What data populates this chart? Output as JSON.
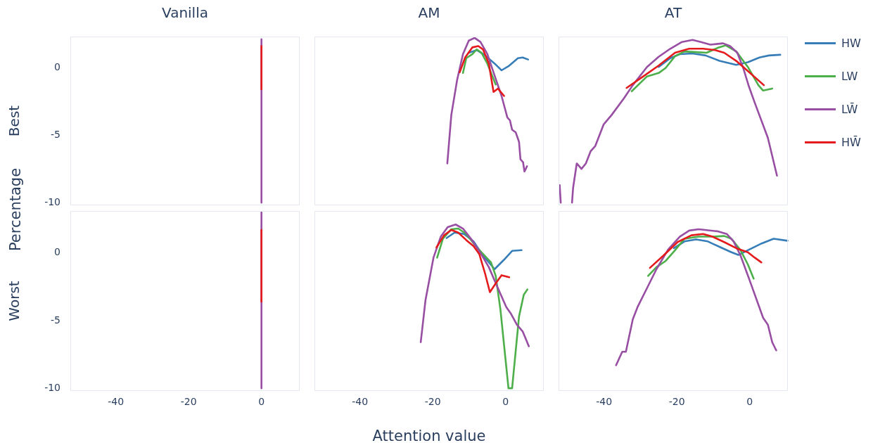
{
  "chart_data": [
    {
      "type": "line",
      "title": "Vanilla",
      "ylabel": "Best",
      "annotations": [
        "Percentage"
      ],
      "xlim": [
        -52.5,
        10.5
      ],
      "ylim": [
        -10.2,
        2.3
      ],
      "xticks": [
        -40,
        -20,
        0
      ],
      "yticks": [
        -10,
        -5,
        0
      ],
      "tick_labels": "y",
      "marker": "none",
      "legend": false,
      "series": [
        {
          "color": "#984ea3",
          "x": [
            0,
            0
          ],
          "values": [
            2.1,
            -10
          ]
        },
        {
          "color": "#e41a1c",
          "x": [
            0,
            0
          ],
          "values": [
            1.6,
            -1.6
          ]
        }
      ]
    },
    {
      "type": "line",
      "title": "AM",
      "xlim": [
        -52.5,
        10.5
      ],
      "ylim": [
        -10.2,
        2.3
      ],
      "xticks": [
        -40,
        -20,
        0
      ],
      "yticks": [
        -10,
        -5,
        0
      ],
      "tick_labels": false,
      "marker": "none",
      "legend": false,
      "series": [
        {
          "color": "#377eb8",
          "x": [
            -10.1,
            -7.9,
            -5.6,
            -3.0,
            -1.1,
            0.8,
            3.4,
            4.7,
            6.2
          ],
          "values": [
            1.1,
            1.3,
            0.9,
            0.3,
            -0.2,
            0.1,
            0.7,
            0.75,
            0.6
          ]
        },
        {
          "color": "#4daf4a",
          "x": [
            -11.7,
            -10.8,
            -9.1,
            -7.9,
            -6.6,
            -5.0,
            -2.7
          ],
          "values": [
            -0.4,
            0.7,
            1.0,
            1.35,
            1.1,
            0.3,
            -1.25
          ]
        },
        {
          "color": "#984ea3",
          "x": [
            -16.0,
            -14.9,
            -13.3,
            -11.7,
            -10.1,
            -8.5,
            -6.9,
            -5.0,
            -3.0,
            -1.1,
            0.5,
            1.2,
            1.8,
            2.8,
            3.7,
            4.1,
            4.8,
            5.2,
            5.9
          ],
          "values": [
            -7.1,
            -3.5,
            -0.9,
            1.0,
            2.0,
            2.2,
            1.9,
            1.0,
            -0.6,
            -2.1,
            -3.7,
            -3.9,
            -4.6,
            -4.8,
            -5.5,
            -6.8,
            -7.0,
            -7.7,
            -7.3
          ]
        },
        {
          "color": "#e41a1c",
          "x": [
            -12.6,
            -11.1,
            -9.1,
            -7.5,
            -6.2,
            -4.6,
            -3.3,
            -2.1,
            -0.4
          ],
          "values": [
            -0.35,
            0.75,
            1.5,
            1.6,
            1.35,
            0.3,
            -1.8,
            -1.55,
            -2.1
          ]
        }
      ]
    },
    {
      "type": "line",
      "title": "AT",
      "xlim": [
        -52.5,
        10.5
      ],
      "ylim": [
        -10.2,
        2.3
      ],
      "xticks": [
        -40,
        -20,
        0
      ],
      "yticks": [
        -10,
        -5,
        0
      ],
      "tick_labels": false,
      "marker": "none",
      "legend": "right",
      "series": [
        {
          "name": "HW",
          "color": "#377eb8",
          "x": [
            -25.0,
            -21.8,
            -19.2,
            -15.7,
            -12.1,
            -8.3,
            -3.7,
            -0.5,
            2.7,
            5.3,
            8.4
          ],
          "values": [
            0.05,
            0.7,
            1.0,
            1.05,
            0.9,
            0.5,
            0.2,
            0.4,
            0.75,
            0.9,
            0.95
          ]
        },
        {
          "name": "LW",
          "color": "#4daf4a",
          "x": [
            -32.4,
            -28.2,
            -25.0,
            -23.1,
            -20.5,
            -17.9,
            -14.7,
            -11.8,
            -8.9,
            -6.6,
            -3.7,
            -0.5,
            2.4,
            3.7,
            6.2
          ],
          "values": [
            -1.75,
            -0.65,
            -0.4,
            -0.03,
            0.85,
            1.2,
            1.15,
            1.1,
            1.45,
            1.65,
            1.2,
            0.05,
            -1.3,
            -1.7,
            -1.55
          ]
        },
        {
          "name": "LW̄",
          "color": "#984ea3",
          "x": [
            -52.2,
            -51.9,
            -50.4,
            -48.8,
            -48.5,
            -47.5,
            -46.2,
            -45.0,
            -43.7,
            -42.4,
            -40.1,
            -37.9,
            -34.6,
            -32.1,
            -28.2,
            -25.0,
            -21.8,
            -18.6,
            -15.7,
            -13.4,
            -10.8,
            -7.3,
            -5.4,
            -3.4,
            -1.8,
            -0.2,
            1.4,
            5.0,
            7.5
          ],
          "values": [
            -8.7,
            -10.0,
            null,
            -10.0,
            -8.9,
            -7.1,
            -7.5,
            -7.1,
            -6.2,
            -5.8,
            -4.2,
            -3.5,
            -2.3,
            -1.3,
            0.05,
            0.8,
            1.4,
            1.9,
            2.05,
            1.9,
            1.7,
            1.8,
            1.6,
            1.1,
            0.0,
            -1.4,
            -2.6,
            -5.2,
            -8.0
          ]
        },
        {
          "name": "HW̄",
          "color": "#e41a1c",
          "x": [
            -33.8,
            -29.5,
            -25.0,
            -20.5,
            -16.6,
            -12.8,
            -9.5,
            -7.0,
            -3.7,
            0.1,
            3.9
          ],
          "values": [
            -1.5,
            -0.7,
            0.15,
            1.1,
            1.4,
            1.4,
            1.3,
            1.1,
            0.5,
            -0.4,
            -1.3
          ]
        }
      ]
    },
    {
      "type": "line",
      "ylabel": "Worst",
      "xlim": [
        -52.5,
        10.5
      ],
      "ylim": [
        -10.2,
        3.1
      ],
      "xticks": [
        -40,
        -20,
        0
      ],
      "yticks": [
        -10,
        -5,
        0
      ],
      "marker": "none",
      "legend": false,
      "series": [
        {
          "color": "#984ea3",
          "x": [
            0,
            0
          ],
          "values": [
            3.0,
            -10
          ]
        },
        {
          "color": "#e41a1c",
          "x": [
            0,
            0
          ],
          "values": [
            1.7,
            -3.6
          ]
        }
      ]
    },
    {
      "type": "line",
      "xlabel": "Attention value",
      "xlim": [
        -52.5,
        10.5
      ],
      "ylim": [
        -10.2,
        3.1
      ],
      "xticks": [
        -40,
        -20,
        0
      ],
      "yticks": [
        -10,
        -5,
        0
      ],
      "tick_labels": "x",
      "marker": "none",
      "legend": false,
      "series": [
        {
          "color": "#377eb8",
          "x": [
            -16.2,
            -14.0,
            -11.4,
            -8.8,
            -6.2,
            -3.0,
            -0.4,
            1.8,
            4.4
          ],
          "values": [
            1.1,
            1.5,
            1.4,
            0.85,
            -0.2,
            -1.2,
            -0.5,
            0.15,
            0.2
          ]
        },
        {
          "color": "#4daf4a",
          "x": [
            -18.8,
            -17.2,
            -14.9,
            -13.0,
            -10.8,
            -8.2,
            -5.6,
            -4.0,
            -2.7,
            -1.4,
            0.8,
            1.8,
            3.7,
            5.0,
            6.0
          ],
          "values": [
            -0.35,
            1.05,
            1.75,
            1.8,
            1.4,
            0.5,
            -0.25,
            -0.7,
            -1.7,
            -4.2,
            -10,
            -10,
            -4.7,
            -3.1,
            -2.7
          ]
        },
        {
          "color": "#984ea3",
          "x": [
            -23.3,
            -22.0,
            -19.8,
            -17.8,
            -15.9,
            -13.7,
            -11.7,
            -9.5,
            -6.9,
            -4.6,
            -2.1,
            0.2,
            1.5,
            3.1,
            4.7,
            6.4
          ],
          "values": [
            -6.6,
            -3.5,
            -0.35,
            1.2,
            1.9,
            2.1,
            1.8,
            1.05,
            0.0,
            -1.05,
            -2.6,
            -4.0,
            -4.5,
            -5.3,
            -5.8,
            -6.9
          ]
        },
        {
          "color": "#e41a1c",
          "x": [
            -19.0,
            -16.9,
            -14.9,
            -13.0,
            -10.8,
            -8.8,
            -7.2,
            -5.6,
            -4.3,
            -2.7,
            -1.1,
            1.0
          ],
          "values": [
            0.4,
            1.3,
            1.7,
            1.5,
            0.95,
            0.5,
            -0.1,
            -1.55,
            -2.9,
            -2.25,
            -1.65,
            -1.8
          ]
        }
      ]
    },
    {
      "type": "line",
      "xlim": [
        -52.5,
        10.5
      ],
      "ylim": [
        -10.2,
        3.1
      ],
      "xticks": [
        -40,
        -20,
        0
      ],
      "yticks": [
        -10,
        -5,
        0
      ],
      "tick_labels": "x",
      "marker": "none",
      "legend": false,
      "series": [
        {
          "color": "#377eb8",
          "x": [
            -20.8,
            -17.9,
            -14.7,
            -11.5,
            -8.3,
            -5.0,
            -3.1,
            -0.5,
            3.3,
            6.6,
            10.4
          ],
          "values": [
            0.35,
            0.85,
            1.0,
            0.85,
            0.45,
            0.05,
            -0.15,
            0.2,
            0.7,
            1.05,
            0.9
          ]
        },
        {
          "color": "#4daf4a",
          "x": [
            -27.9,
            -25.6,
            -23.1,
            -20.5,
            -17.9,
            -14.0,
            -10.2,
            -7.0,
            -5.0,
            -2.5,
            -0.5,
            1.1
          ],
          "values": [
            -1.7,
            -1.05,
            -0.6,
            0.2,
            1.05,
            1.2,
            1.2,
            1.25,
            1.05,
            0.2,
            -0.85,
            -1.9
          ]
        },
        {
          "color": "#984ea3",
          "x": [
            -36.7,
            -35.0,
            -34.0,
            -32.1,
            -30.8,
            -28.2,
            -25.6,
            -22.4,
            -19.2,
            -16.6,
            -14.0,
            -8.9,
            -6.3,
            -4.4,
            -2.5,
            0.1,
            3.7,
            5.0,
            6.2,
            7.3
          ],
          "values": [
            -8.3,
            -7.3,
            -7.3,
            -4.9,
            -4.0,
            -2.6,
            -1.2,
            0.25,
            1.2,
            1.65,
            1.75,
            1.6,
            1.4,
            0.85,
            -0.2,
            -2.1,
            -4.8,
            -5.3,
            -6.6,
            -7.2
          ]
        },
        {
          "color": "#e41a1c",
          "x": [
            -27.4,
            -23.7,
            -19.8,
            -16.0,
            -12.8,
            -10.2,
            -7.0,
            -3.7,
            -0.5,
            1.4,
            3.2
          ],
          "values": [
            -1.1,
            -0.2,
            0.8,
            1.3,
            1.4,
            1.2,
            0.8,
            0.35,
            0.05,
            -0.35,
            -0.7
          ]
        }
      ]
    }
  ]
}
